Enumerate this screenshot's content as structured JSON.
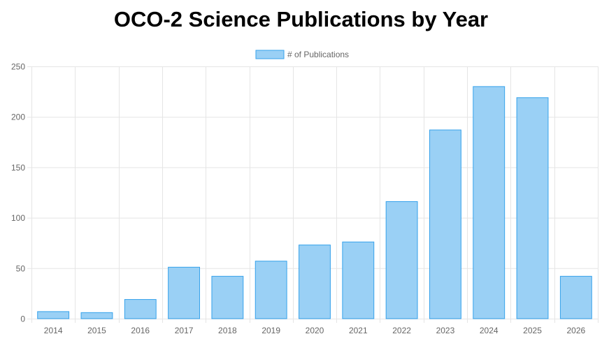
{
  "colors": {
    "bar_fill": "#9ad0f5",
    "bar_stroke": "#36a2eb",
    "grid": "#e5e5e5",
    "text": "#666666",
    "title": "#000000"
  },
  "chart_data": {
    "type": "bar",
    "title": "OCO-2 Science Publications by Year",
    "xlabel": "",
    "ylabel": "",
    "categories": [
      "2014",
      "2015",
      "2016",
      "2017",
      "2018",
      "2019",
      "2020",
      "2021",
      "2022",
      "2023",
      "2024",
      "2025",
      "2026"
    ],
    "series": [
      {
        "name": "# of Publications",
        "values": [
          7,
          6,
          19,
          51,
          42,
          57,
          73,
          76,
          116,
          187,
          230,
          219,
          42
        ]
      }
    ],
    "ylim": [
      0,
      250
    ],
    "yticks": [
      0,
      50,
      100,
      150,
      200,
      250
    ],
    "grid": true,
    "legend_position": "top-center"
  }
}
